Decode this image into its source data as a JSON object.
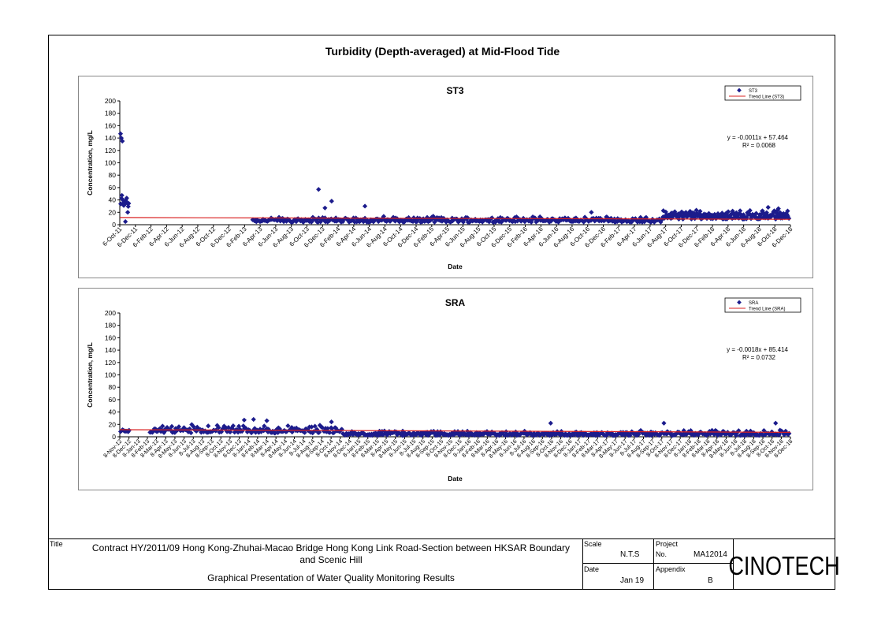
{
  "page_title": "Turbidity (Depth-averaged) at Mid-Flood Tide",
  "colors": {
    "marker": "#1c1c8c",
    "trend": "#d92020"
  },
  "chart_data": [
    {
      "type": "scatter",
      "title": "ST3",
      "xlabel": "Date",
      "ylabel": "Concentration, mg/L",
      "ylim": [
        0,
        200
      ],
      "yticks": [
        0,
        20,
        40,
        60,
        80,
        100,
        120,
        140,
        160,
        180,
        200
      ],
      "xticks": [
        "6-Oct-11",
        "6-Dec-11",
        "6-Feb-12",
        "6-Apr-12",
        "6-Jun-12",
        "6-Aug-12",
        "6-Oct-12",
        "6-Dec-12",
        "6-Feb-13",
        "6-Apr-13",
        "6-Jun-13",
        "6-Aug-13",
        "6-Oct-13",
        "6-Dec-13",
        "6-Feb-14",
        "6-Apr-14",
        "6-Jun-14",
        "6-Aug-14",
        "6-Oct-14",
        "6-Dec-14",
        "6-Feb-15",
        "6-Apr-15",
        "6-Jun-15",
        "6-Aug-15",
        "6-Oct-15",
        "6-Dec-15",
        "6-Feb-16",
        "6-Apr-16",
        "6-Jun-16",
        "6-Aug-16",
        "6-Oct-16",
        "6-Dec-16",
        "6-Feb-17",
        "6-Apr-17",
        "6-Jun-17",
        "6-Aug-17",
        "6-Oct-17",
        "6-Dec-17",
        "6-Feb-18",
        "6-Apr-18",
        "6-Jun-18",
        "6-Aug-18",
        "6-Oct-18",
        "6-Dec-18"
      ],
      "x_start": "2011-10-06",
      "x_end": "2018-12-06",
      "legend": {
        "position": "top-right",
        "series_label": "ST3",
        "trend_label": "Trend Line (ST3)"
      },
      "equation": "y = -0.0011x + 57.464",
      "r2": "R² = 0.0068",
      "trend": {
        "y_start": 11.6,
        "y_end": 8.7
      },
      "series": [
        {
          "name": "ST3",
          "segments": [
            {
              "start": "2011-10-08",
              "end": "2011-11-12",
              "n": 12,
              "base": 30,
              "spread": 28
            },
            {
              "start": "2013-03-05",
              "end": "2017-07-25",
              "n": 420,
              "base": 7,
              "spread": 10
            },
            {
              "start": "2017-07-25",
              "end": "2018-12-01",
              "n": 190,
              "base": 12,
              "spread": 16
            }
          ],
          "points": [
            [
              "2011-10-09",
              147
            ],
            [
              "2011-10-12",
              140
            ],
            [
              "2011-10-16",
              135
            ],
            [
              "2011-10-20",
              35
            ],
            [
              "2011-10-25",
              33
            ],
            [
              "2011-11-02",
              43
            ],
            [
              "2011-11-06",
              20
            ],
            [
              "2011-10-28",
              5
            ],
            [
              "2013-11-20",
              57
            ],
            [
              "2014-01-10",
              38
            ],
            [
              "2014-05-20",
              30
            ],
            [
              "2013-12-15",
              27
            ],
            [
              "2016-10-20",
              20
            ],
            [
              "2018-09-10",
              28
            ],
            [
              "2018-10-20",
              26
            ]
          ]
        }
      ]
    },
    {
      "type": "scatter",
      "title": "SRA",
      "xlabel": "Date",
      "ylabel": "Concentration, mg/L",
      "ylim": [
        0,
        200
      ],
      "yticks": [
        0,
        20,
        40,
        60,
        80,
        100,
        120,
        140,
        160,
        180,
        200
      ],
      "xticks": [
        "8-Nov-12",
        "8-Dec-12",
        "8-Jan-13",
        "8-Feb-13",
        "8-Mar-13",
        "8-Apr-13",
        "8-May-13",
        "8-Jun-13",
        "8-Jul-13",
        "8-Aug-13",
        "8-Sep-13",
        "8-Oct-13",
        "8-Nov-13",
        "8-Dec-13",
        "8-Jan-14",
        "8-Feb-14",
        "8-Mar-14",
        "8-Apr-14",
        "8-May-14",
        "8-Jun-14",
        "8-Jul-14",
        "8-Aug-14",
        "8-Sep-14",
        "8-Oct-14",
        "8-Nov-14",
        "8-Dec-14",
        "8-Jan-15",
        "8-Feb-15",
        "8-Mar-15",
        "8-Apr-15",
        "8-May-15",
        "8-Jun-15",
        "8-Jul-15",
        "8-Aug-15",
        "8-Sep-15",
        "8-Oct-15",
        "8-Nov-15",
        "8-Dec-15",
        "8-Jan-16",
        "8-Feb-16",
        "8-Mar-16",
        "8-Apr-16",
        "8-May-16",
        "8-Jun-16",
        "8-Jul-16",
        "8-Aug-16",
        "8-Sep-16",
        "8-Oct-16",
        "8-Nov-16",
        "8-Dec-16",
        "8-Jan-17",
        "8-Feb-17",
        "8-Mar-17",
        "8-Apr-17",
        "8-May-17",
        "8-Jun-17",
        "8-Jul-17",
        "8-Aug-17",
        "8-Sep-17",
        "8-Oct-17",
        "8-Nov-17",
        "8-Dec-17",
        "8-Jan-18",
        "8-Feb-18",
        "8-Mar-18",
        "8-Apr-18",
        "8-May-18",
        "8-Jun-18",
        "8-Jul-18",
        "8-Aug-18",
        "8-Sep-18",
        "8-Oct-18",
        "8-Nov-18",
        "8-Dec-18"
      ],
      "x_start": "2012-11-08",
      "x_end": "2018-12-08",
      "legend": {
        "position": "top-right",
        "series_label": "SRA",
        "trend_label": "Trend Line (SRA)"
      },
      "equation": "y = -0.0018x + 85.414",
      "r2": "R² = 0.0732",
      "trend": {
        "y_start": 11.5,
        "y_end": 7.2
      },
      "series": [
        {
          "name": "SRA",
          "segments": [
            {
              "start": "2012-11-10",
              "end": "2012-12-10",
              "n": 10,
              "base": 11,
              "spread": 5
            },
            {
              "start": "2013-02-15",
              "end": "2014-11-15",
              "n": 180,
              "base": 9,
              "spread": 14
            },
            {
              "start": "2014-11-15",
              "end": "2017-07-25",
              "n": 300,
              "base": 5,
              "spread": 8
            },
            {
              "start": "2017-07-25",
              "end": "2018-12-05",
              "n": 150,
              "base": 5,
              "spread": 10
            }
          ],
          "points": [
            [
              "2013-12-25",
              27
            ],
            [
              "2014-01-25",
              28
            ],
            [
              "2014-03-10",
              26
            ],
            [
              "2014-10-10",
              24
            ],
            [
              "2016-10-05",
              22
            ],
            [
              "2017-10-15",
              22
            ],
            [
              "2018-10-20",
              22
            ]
          ]
        }
      ]
    }
  ],
  "title_block": {
    "title_label": "Title",
    "title_line1": "Contract HY/2011/09 Hong Kong-Zhuhai-Macao Bridge Hong Kong Link Road-Section between HKSAR Boundary",
    "title_line2": "and Scenic Hill",
    "subtitle": "Graphical Presentation of Water Quality Monitoring Results",
    "scale_label": "Scale",
    "scale_value": "N.T.S",
    "date_label": "Date",
    "date_value": "Jan 19",
    "project_label": "Project",
    "project_no_label": "No.",
    "project_no_value": "MA12014",
    "appendix_label": "Appendix",
    "appendix_value": "B",
    "logo_text": "CINOTECH"
  }
}
